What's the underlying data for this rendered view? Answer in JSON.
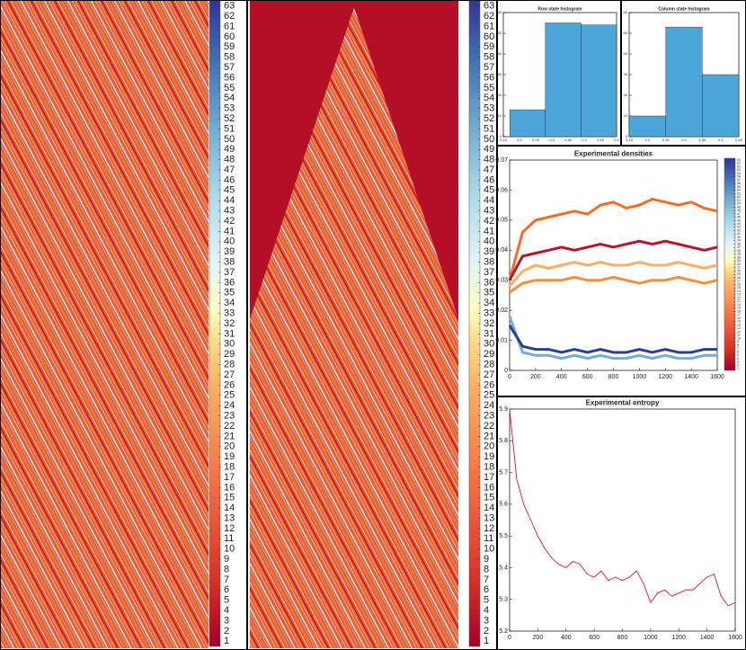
{
  "chart_data": [
    {
      "type": "heatmap",
      "clim": [
        0.5,
        63.5
      ],
      "colorbar_ticks": [
        1,
        2,
        3,
        4,
        5,
        6,
        7,
        8,
        9,
        10,
        11,
        12,
        13,
        14,
        15,
        16,
        17,
        18,
        19,
        20,
        21,
        22,
        23,
        24,
        25,
        26,
        27,
        28,
        29,
        30,
        31,
        32,
        33,
        34,
        35,
        36,
        37,
        38,
        39,
        40,
        41,
        42,
        43,
        44,
        45,
        46,
        47,
        48,
        49,
        50,
        51,
        52,
        53,
        54,
        55,
        56,
        57,
        58,
        59,
        60,
        61,
        62,
        63
      ]
    },
    {
      "type": "heatmap",
      "clim": [
        0.5,
        63.5
      ],
      "colorbar_ticks": [
        1,
        2,
        3,
        4,
        5,
        6,
        7,
        8,
        9,
        10,
        11,
        12,
        13,
        14,
        15,
        16,
        17,
        18,
        19,
        20,
        21,
        22,
        23,
        24,
        25,
        26,
        27,
        28,
        29,
        30,
        31,
        32,
        33,
        34,
        35,
        36,
        37,
        38,
        39,
        40,
        41,
        42,
        43,
        44,
        45,
        46,
        47,
        48,
        49,
        50,
        51,
        52,
        53,
        54,
        55,
        56,
        57,
        58,
        59,
        60,
        61,
        62,
        63
      ]
    },
    {
      "type": "histogram",
      "title": "Row state histogram",
      "bins": [
        0.17,
        0.28,
        0.39,
        0.5
      ],
      "values": [
        13,
        55,
        54
      ],
      "color": "#4da6d9",
      "xlim": [
        0.15,
        0.5
      ],
      "xticks": [
        0.15,
        0.2,
        0.25,
        0.3,
        0.35,
        0.4,
        0.45,
        0.5
      ],
      "ylim": [
        0,
        60
      ],
      "yticks": [
        0,
        10,
        20,
        30,
        40,
        50,
        60
      ]
    },
    {
      "type": "histogram",
      "title": "Column state histogram",
      "bins": [
        0.15,
        0.25,
        0.35,
        0.45
      ],
      "values": [
        10,
        53,
        30
      ],
      "color": "#4da6d9",
      "xlim": [
        0.15,
        0.45
      ],
      "xticks": [
        0.15,
        0.2,
        0.25,
        0.3,
        0.35,
        0.4,
        0.45
      ],
      "ylim": [
        0,
        60
      ],
      "yticks": [
        0,
        10,
        20,
        30,
        40,
        50,
        60
      ]
    },
    {
      "type": "line",
      "title": "Experimental densities",
      "x": [
        0,
        100,
        200,
        300,
        400,
        500,
        600,
        700,
        800,
        900,
        1000,
        1100,
        1200,
        1300,
        1400,
        1500,
        1600
      ],
      "series": [
        {
          "color": "#f46d25",
          "values": [
            0.03,
            0.046,
            0.05,
            0.051,
            0.052,
            0.053,
            0.052,
            0.055,
            0.056,
            0.054,
            0.055,
            0.057,
            0.056,
            0.055,
            0.056,
            0.054,
            0.053
          ]
        },
        {
          "color": "#c0112b",
          "values": [
            0.03,
            0.038,
            0.039,
            0.04,
            0.041,
            0.04,
            0.041,
            0.042,
            0.041,
            0.042,
            0.043,
            0.042,
            0.043,
            0.042,
            0.041,
            0.04,
            0.041
          ]
        },
        {
          "color": "#fdae61",
          "values": [
            0.028,
            0.033,
            0.035,
            0.034,
            0.035,
            0.036,
            0.035,
            0.036,
            0.035,
            0.035,
            0.036,
            0.035,
            0.035,
            0.036,
            0.035,
            0.034,
            0.035
          ]
        },
        {
          "color": "#f88d3c",
          "values": [
            0.026,
            0.029,
            0.03,
            0.03,
            0.03,
            0.031,
            0.03,
            0.03,
            0.031,
            0.03,
            0.029,
            0.03,
            0.03,
            0.031,
            0.03,
            0.029,
            0.03
          ]
        },
        {
          "color": "#74add1",
          "values": [
            0.018,
            0.006,
            0.005,
            0.005,
            0.004,
            0.005,
            0.004,
            0.005,
            0.004,
            0.004,
            0.005,
            0.004,
            0.005,
            0.004,
            0.004,
            0.005,
            0.005
          ]
        },
        {
          "color": "#2a3d99",
          "values": [
            0.015,
            0.008,
            0.007,
            0.007,
            0.006,
            0.007,
            0.006,
            0.007,
            0.006,
            0.006,
            0.007,
            0.006,
            0.007,
            0.006,
            0.006,
            0.007,
            0.007
          ]
        }
      ],
      "xlim": [
        0,
        1600
      ],
      "xticks": [
        0,
        200,
        400,
        600,
        800,
        1000,
        1200,
        1400,
        1600
      ],
      "ylim": [
        0,
        0.07
      ],
      "yticks": [
        0,
        0.01,
        0.02,
        0.03,
        0.04,
        0.05,
        0.06,
        0.07
      ],
      "clim": [
        0.5,
        63.5
      ],
      "colorbar_ticks": [
        1,
        2,
        3,
        4,
        5,
        6,
        7,
        8,
        9,
        10,
        11,
        12,
        13,
        14,
        15,
        16,
        17,
        18,
        19,
        20,
        21,
        22,
        23,
        24,
        25,
        26,
        27,
        28,
        29,
        30,
        31,
        32,
        33,
        34,
        35,
        36,
        37,
        38,
        39,
        40,
        41,
        42,
        43,
        44,
        45,
        46,
        47,
        48,
        49,
        50,
        51,
        52,
        53,
        54,
        55,
        56,
        57,
        58,
        59,
        60,
        61,
        62,
        63
      ]
    },
    {
      "type": "line",
      "title": "Experimental entropy",
      "x": [
        0,
        50,
        100,
        150,
        200,
        250,
        300,
        350,
        400,
        450,
        500,
        550,
        600,
        650,
        700,
        750,
        800,
        850,
        900,
        950,
        1000,
        1050,
        1100,
        1150,
        1200,
        1250,
        1300,
        1350,
        1400,
        1450,
        1500,
        1550,
        1600
      ],
      "series": [
        {
          "color": "#e8102a",
          "values": [
            5.9,
            5.68,
            5.6,
            5.55,
            5.5,
            5.46,
            5.43,
            5.41,
            5.4,
            5.42,
            5.41,
            5.38,
            5.37,
            5.39,
            5.36,
            5.37,
            5.36,
            5.37,
            5.39,
            5.35,
            5.29,
            5.32,
            5.33,
            5.31,
            5.32,
            5.33,
            5.33,
            5.35,
            5.37,
            5.38,
            5.31,
            5.28,
            5.29
          ]
        }
      ],
      "xlim": [
        0,
        1600
      ],
      "xticks": [
        0,
        200,
        400,
        600,
        800,
        1000,
        1200,
        1400,
        1600
      ],
      "ylim": [
        5.2,
        5.9
      ],
      "yticks": [
        5.2,
        5.3,
        5.4,
        5.5,
        5.6,
        5.7,
        5.8,
        5.9
      ]
    }
  ]
}
